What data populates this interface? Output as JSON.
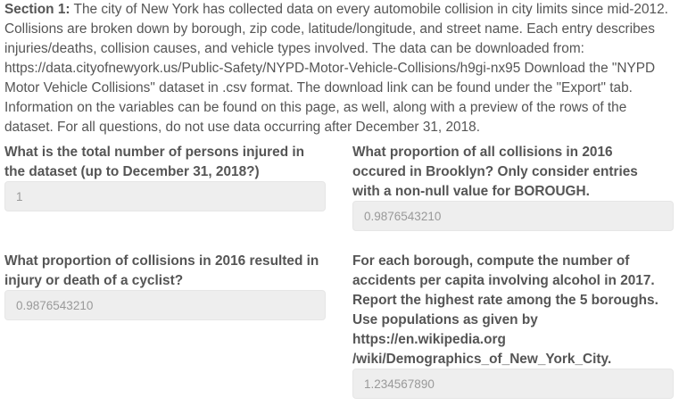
{
  "intro": {
    "section_label": "Section 1:",
    "text": " The city of New York has collected data on every automobile collision in city limits since mid-2012. Collisions are broken down by borough, zip code, latitude/longitude, and street name. Each entry describes injuries/deaths, collision causes, and vehicle types involved. The data can be downloaded from: https://data.cityofnewyork.us/Public-Safety/NYPD-Motor-Vehicle-Collisions/h9gi-nx95 Download the \"NYPD Motor Vehicle Collisions\" dataset in .csv format. The download link can be found under the \"Export\" tab. Information on the variables can be found on this page, as well, along with a preview of the rows of the dataset. For all questions, do not use data occurring after December 31, 2018."
  },
  "questions": [
    {
      "label": "What is the total number of persons injured in the dataset (up to December 31, 2018?)",
      "value": "1"
    },
    {
      "label": "What proportion of all collisions in 2016 occured in Brooklyn? Only consider entries with a non-null value for BOROUGH.",
      "value": "0.9876543210"
    },
    {
      "label": "What proportion of collisions in 2016 resulted in injury or death of a cyclist?",
      "value": "0.9876543210"
    },
    {
      "label": "For each borough, compute the number of accidents per capita involving alcohol in 2017. Report the highest rate among the 5 boroughs. Use populations as given by https://en.wikipedia.org /wiki/Demographics_of_New_York_City.",
      "value": "1.234567890"
    }
  ]
}
